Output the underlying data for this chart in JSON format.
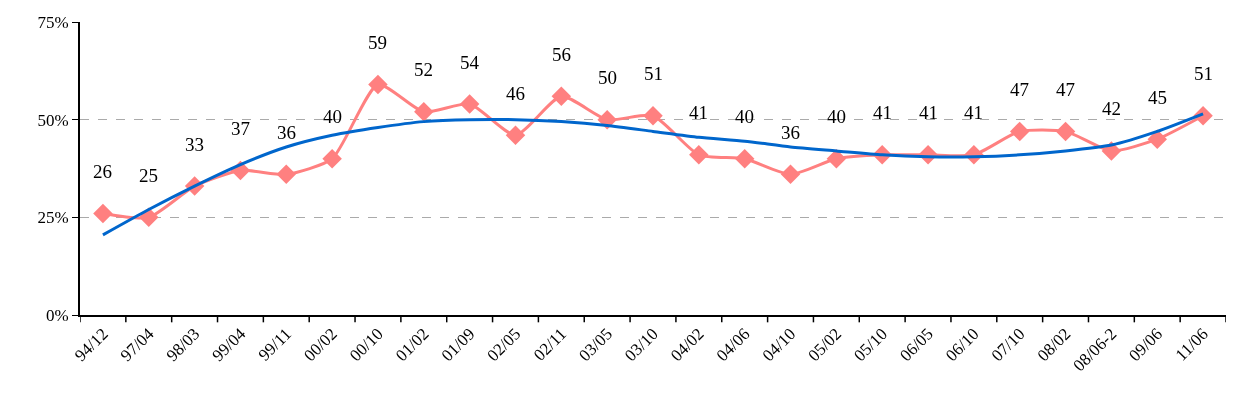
{
  "chart_data": {
    "type": "line",
    "categories": [
      "94/12",
      "97/04",
      "98/03",
      "99/04",
      "99/11",
      "00/02",
      "00/10",
      "01/02",
      "01/09",
      "02/05",
      "02/11",
      "03/05",
      "03/10",
      "04/02",
      "04/06",
      "04/10",
      "05/02",
      "05/10",
      "06/05",
      "06/10",
      "07/10",
      "08/02",
      "08/06-2",
      "09/06",
      "11/06"
    ],
    "series": [
      {
        "color": "#ff8080",
        "marker": "diamond",
        "values": [
          26,
          25,
          33,
          37,
          36,
          40,
          59,
          52,
          54,
          46,
          56,
          50,
          51,
          41,
          40,
          36,
          40,
          41,
          41,
          41,
          47,
          47,
          42,
          45,
          51
        ],
        "value_labels": [
          "26",
          "25",
          "33",
          "37",
          "36",
          "40",
          "59",
          "52",
          "54",
          "46",
          "56",
          "50",
          "51",
          "41",
          "40",
          "36",
          "40",
          "41",
          "41",
          "41",
          "47",
          "47",
          "42",
          "45",
          "51"
        ]
      },
      {
        "color": "#0066cc",
        "marker": "none",
        "values": [
          20.5,
          27,
          33,
          38.5,
          43,
          46,
          48,
          49.5,
          50,
          50,
          49.5,
          48.5,
          47,
          45.5,
          44.5,
          43,
          42,
          41,
          40.5,
          40.5,
          41,
          42,
          43.5,
          47,
          51.5
        ]
      }
    ],
    "ylim": [
      0,
      75
    ],
    "yticks": [
      {
        "value": 0,
        "label": "0%"
      },
      {
        "value": 25,
        "label": "25%"
      },
      {
        "value": 50,
        "label": "50%"
      },
      {
        "value": 75,
        "label": "75%"
      }
    ],
    "grid": "y",
    "line_style": "solid"
  }
}
